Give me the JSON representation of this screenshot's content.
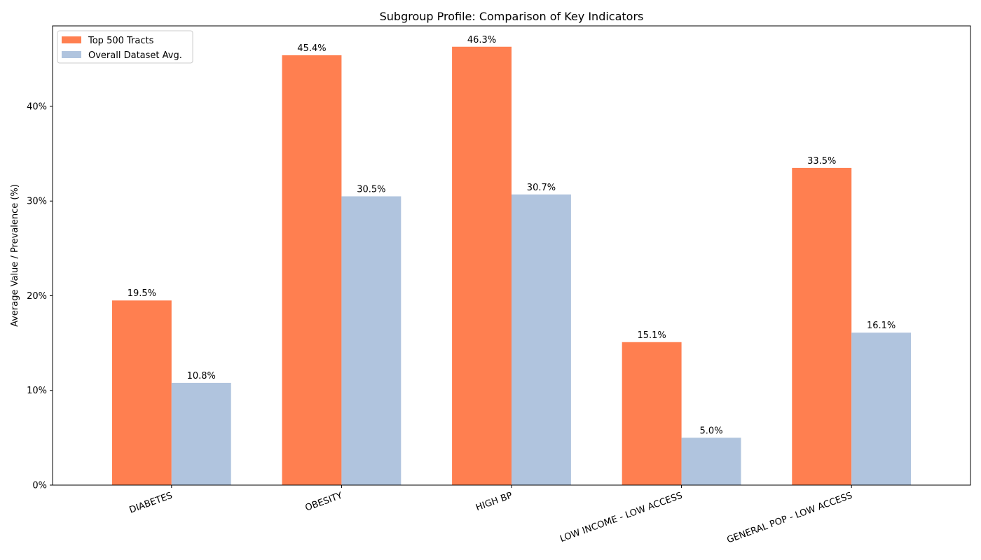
{
  "chart_data": {
    "type": "bar",
    "title": "Subgroup Profile: Comparison of Key Indicators",
    "xlabel": "",
    "ylabel": "Average Value / Prevalence (%)",
    "ylim": [
      0,
      48.5
    ],
    "yticks": [
      0,
      10,
      20,
      30,
      40
    ],
    "ytick_labels": [
      "0%",
      "10%",
      "20%",
      "30%",
      "40%"
    ],
    "grid": false,
    "legend_position": "top-left",
    "categories": [
      "DIABETES",
      "OBESITY",
      "HIGH BP",
      "LOW INCOME - LOW ACCESS",
      "GENERAL POP - LOW ACCESS"
    ],
    "series": [
      {
        "name": "Top 500 Tracts",
        "color": "#ff7f50",
        "values": [
          19.5,
          45.4,
          46.3,
          15.1,
          33.5
        ],
        "labels": [
          "19.5%",
          "45.4%",
          "46.3%",
          "15.1%",
          "33.5%"
        ]
      },
      {
        "name": "Overall Dataset Avg.",
        "color": "#b0c4de",
        "values": [
          10.8,
          30.5,
          30.7,
          5.0,
          16.1
        ],
        "labels": [
          "10.8%",
          "30.5%",
          "30.7%",
          "5.0%",
          "16.1%"
        ]
      }
    ]
  }
}
